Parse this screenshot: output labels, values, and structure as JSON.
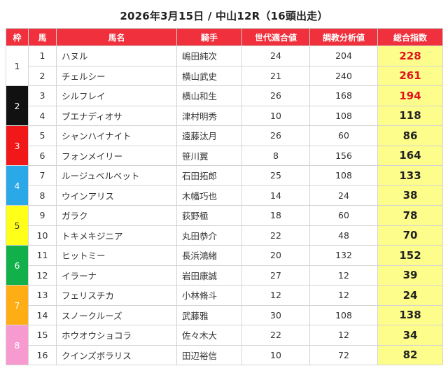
{
  "title": "2026年3月15日 / 中山12R（16頭出走）",
  "headers": [
    "枠",
    "馬",
    "馬名",
    "騎手",
    "世代適合値",
    "調教分析値",
    "総合指数"
  ],
  "waku_colors": {
    "1": {
      "bg": "#ffffff",
      "fg": "#333333"
    },
    "2": {
      "bg": "#111111",
      "fg": "#ffffff"
    },
    "3": {
      "bg": "#f01818",
      "fg": "#ffffff"
    },
    "4": {
      "bg": "#2aa8e8",
      "fg": "#ffffff"
    },
    "5": {
      "bg": "#ffff1a",
      "fg": "#333333"
    },
    "6": {
      "bg": "#12b04a",
      "fg": "#ffffff"
    },
    "7": {
      "bg": "#ffad14",
      "fg": "#ffffff"
    },
    "8": {
      "bg": "#f79ad0",
      "fg": "#ffffff"
    }
  },
  "rows": [
    {
      "waku": "1",
      "num": "1",
      "name": "ハヌル",
      "jockey": "嶋田純次",
      "gen": "24",
      "train": "204",
      "score": "228",
      "top": true
    },
    {
      "waku": "1",
      "num": "2",
      "name": "チェルシー",
      "jockey": "横山武史",
      "gen": "21",
      "train": "240",
      "score": "261",
      "top": true
    },
    {
      "waku": "2",
      "num": "3",
      "name": "シルフレイ",
      "jockey": "横山和生",
      "gen": "26",
      "train": "168",
      "score": "194",
      "top": true
    },
    {
      "waku": "2",
      "num": "4",
      "name": "ブエナディオサ",
      "jockey": "津村明秀",
      "gen": "10",
      "train": "108",
      "score": "118",
      "top": false
    },
    {
      "waku": "3",
      "num": "5",
      "name": "シャンハイナイト",
      "jockey": "遠藤汰月",
      "gen": "26",
      "train": "60",
      "score": "86",
      "top": false
    },
    {
      "waku": "3",
      "num": "6",
      "name": "フォンメイリー",
      "jockey": "笹川翼",
      "gen": "8",
      "train": "156",
      "score": "164",
      "top": false
    },
    {
      "waku": "4",
      "num": "7",
      "name": "ルージュベルベット",
      "jockey": "石田拓郎",
      "gen": "25",
      "train": "108",
      "score": "133",
      "top": false
    },
    {
      "waku": "4",
      "num": "8",
      "name": "ウインアリス",
      "jockey": "木幡巧也",
      "gen": "14",
      "train": "24",
      "score": "38",
      "top": false
    },
    {
      "waku": "5",
      "num": "9",
      "name": "ガラク",
      "jockey": "荻野極",
      "gen": "18",
      "train": "60",
      "score": "78",
      "top": false
    },
    {
      "waku": "5",
      "num": "10",
      "name": "トキメキジニア",
      "jockey": "丸田恭介",
      "gen": "22",
      "train": "48",
      "score": "70",
      "top": false
    },
    {
      "waku": "6",
      "num": "11",
      "name": "ヒットミー",
      "jockey": "長浜鴻緒",
      "gen": "20",
      "train": "132",
      "score": "152",
      "top": false
    },
    {
      "waku": "6",
      "num": "12",
      "name": "イラーナ",
      "jockey": "岩田康誠",
      "gen": "27",
      "train": "12",
      "score": "39",
      "top": false
    },
    {
      "waku": "7",
      "num": "13",
      "name": "フェリスチカ",
      "jockey": "小林脩斗",
      "gen": "12",
      "train": "12",
      "score": "24",
      "top": false
    },
    {
      "waku": "7",
      "num": "14",
      "name": "スノークルーズ",
      "jockey": "武藤雅",
      "gen": "30",
      "train": "108",
      "score": "138",
      "top": false
    },
    {
      "waku": "8",
      "num": "15",
      "name": "ホウオウショコラ",
      "jockey": "佐々木大",
      "gen": "22",
      "train": "12",
      "score": "34",
      "top": false
    },
    {
      "waku": "8",
      "num": "16",
      "name": "クインズボラリス",
      "jockey": "田辺裕信",
      "gen": "10",
      "train": "72",
      "score": "82",
      "top": false
    }
  ]
}
